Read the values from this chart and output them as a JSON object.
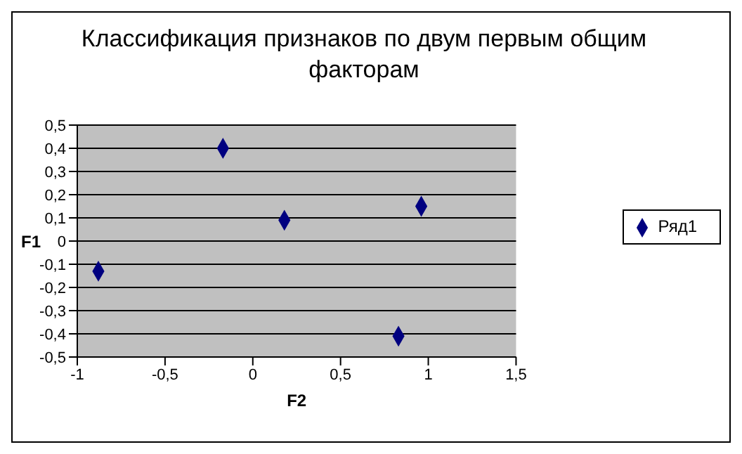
{
  "chart_data": {
    "type": "scatter",
    "title": "Классификация признаков по двум первым общим факторам",
    "xlabel": "F2",
    "ylabel": "F1",
    "x": [
      -0.88,
      -0.17,
      0.18,
      0.96,
      0.83
    ],
    "series": [
      {
        "name": "Ряд1",
        "color": "#000080",
        "values": [
          -0.13,
          0.4,
          0.09,
          0.15,
          -0.41
        ]
      }
    ],
    "xlim": [
      -1,
      1.5
    ],
    "xticks": [
      -1,
      {
        "value": -0.5,
        "label": "-0,5"
      },
      0,
      {
        "value": 0.5,
        "label": "0,5"
      },
      1,
      {
        "value": 1.5,
        "label": "1,5"
      }
    ],
    "ylim": [
      -0.5,
      0.5
    ],
    "yticks": [
      {
        "value": -0.5,
        "label": "-0,5"
      },
      {
        "value": -0.4,
        "label": "-0,4"
      },
      {
        "value": -0.3,
        "label": "-0,3"
      },
      {
        "value": -0.2,
        "label": "-0,2"
      },
      {
        "value": -0.1,
        "label": "-0,1"
      },
      0,
      {
        "value": 0.1,
        "label": "0,1"
      },
      {
        "value": 0.2,
        "label": "0,2"
      },
      {
        "value": 0.3,
        "label": "0,3"
      },
      {
        "value": 0.4,
        "label": "0,4"
      },
      {
        "value": 0.5,
        "label": "0,5"
      }
    ],
    "grid": "y",
    "legend": "right",
    "marker": "diamond"
  }
}
